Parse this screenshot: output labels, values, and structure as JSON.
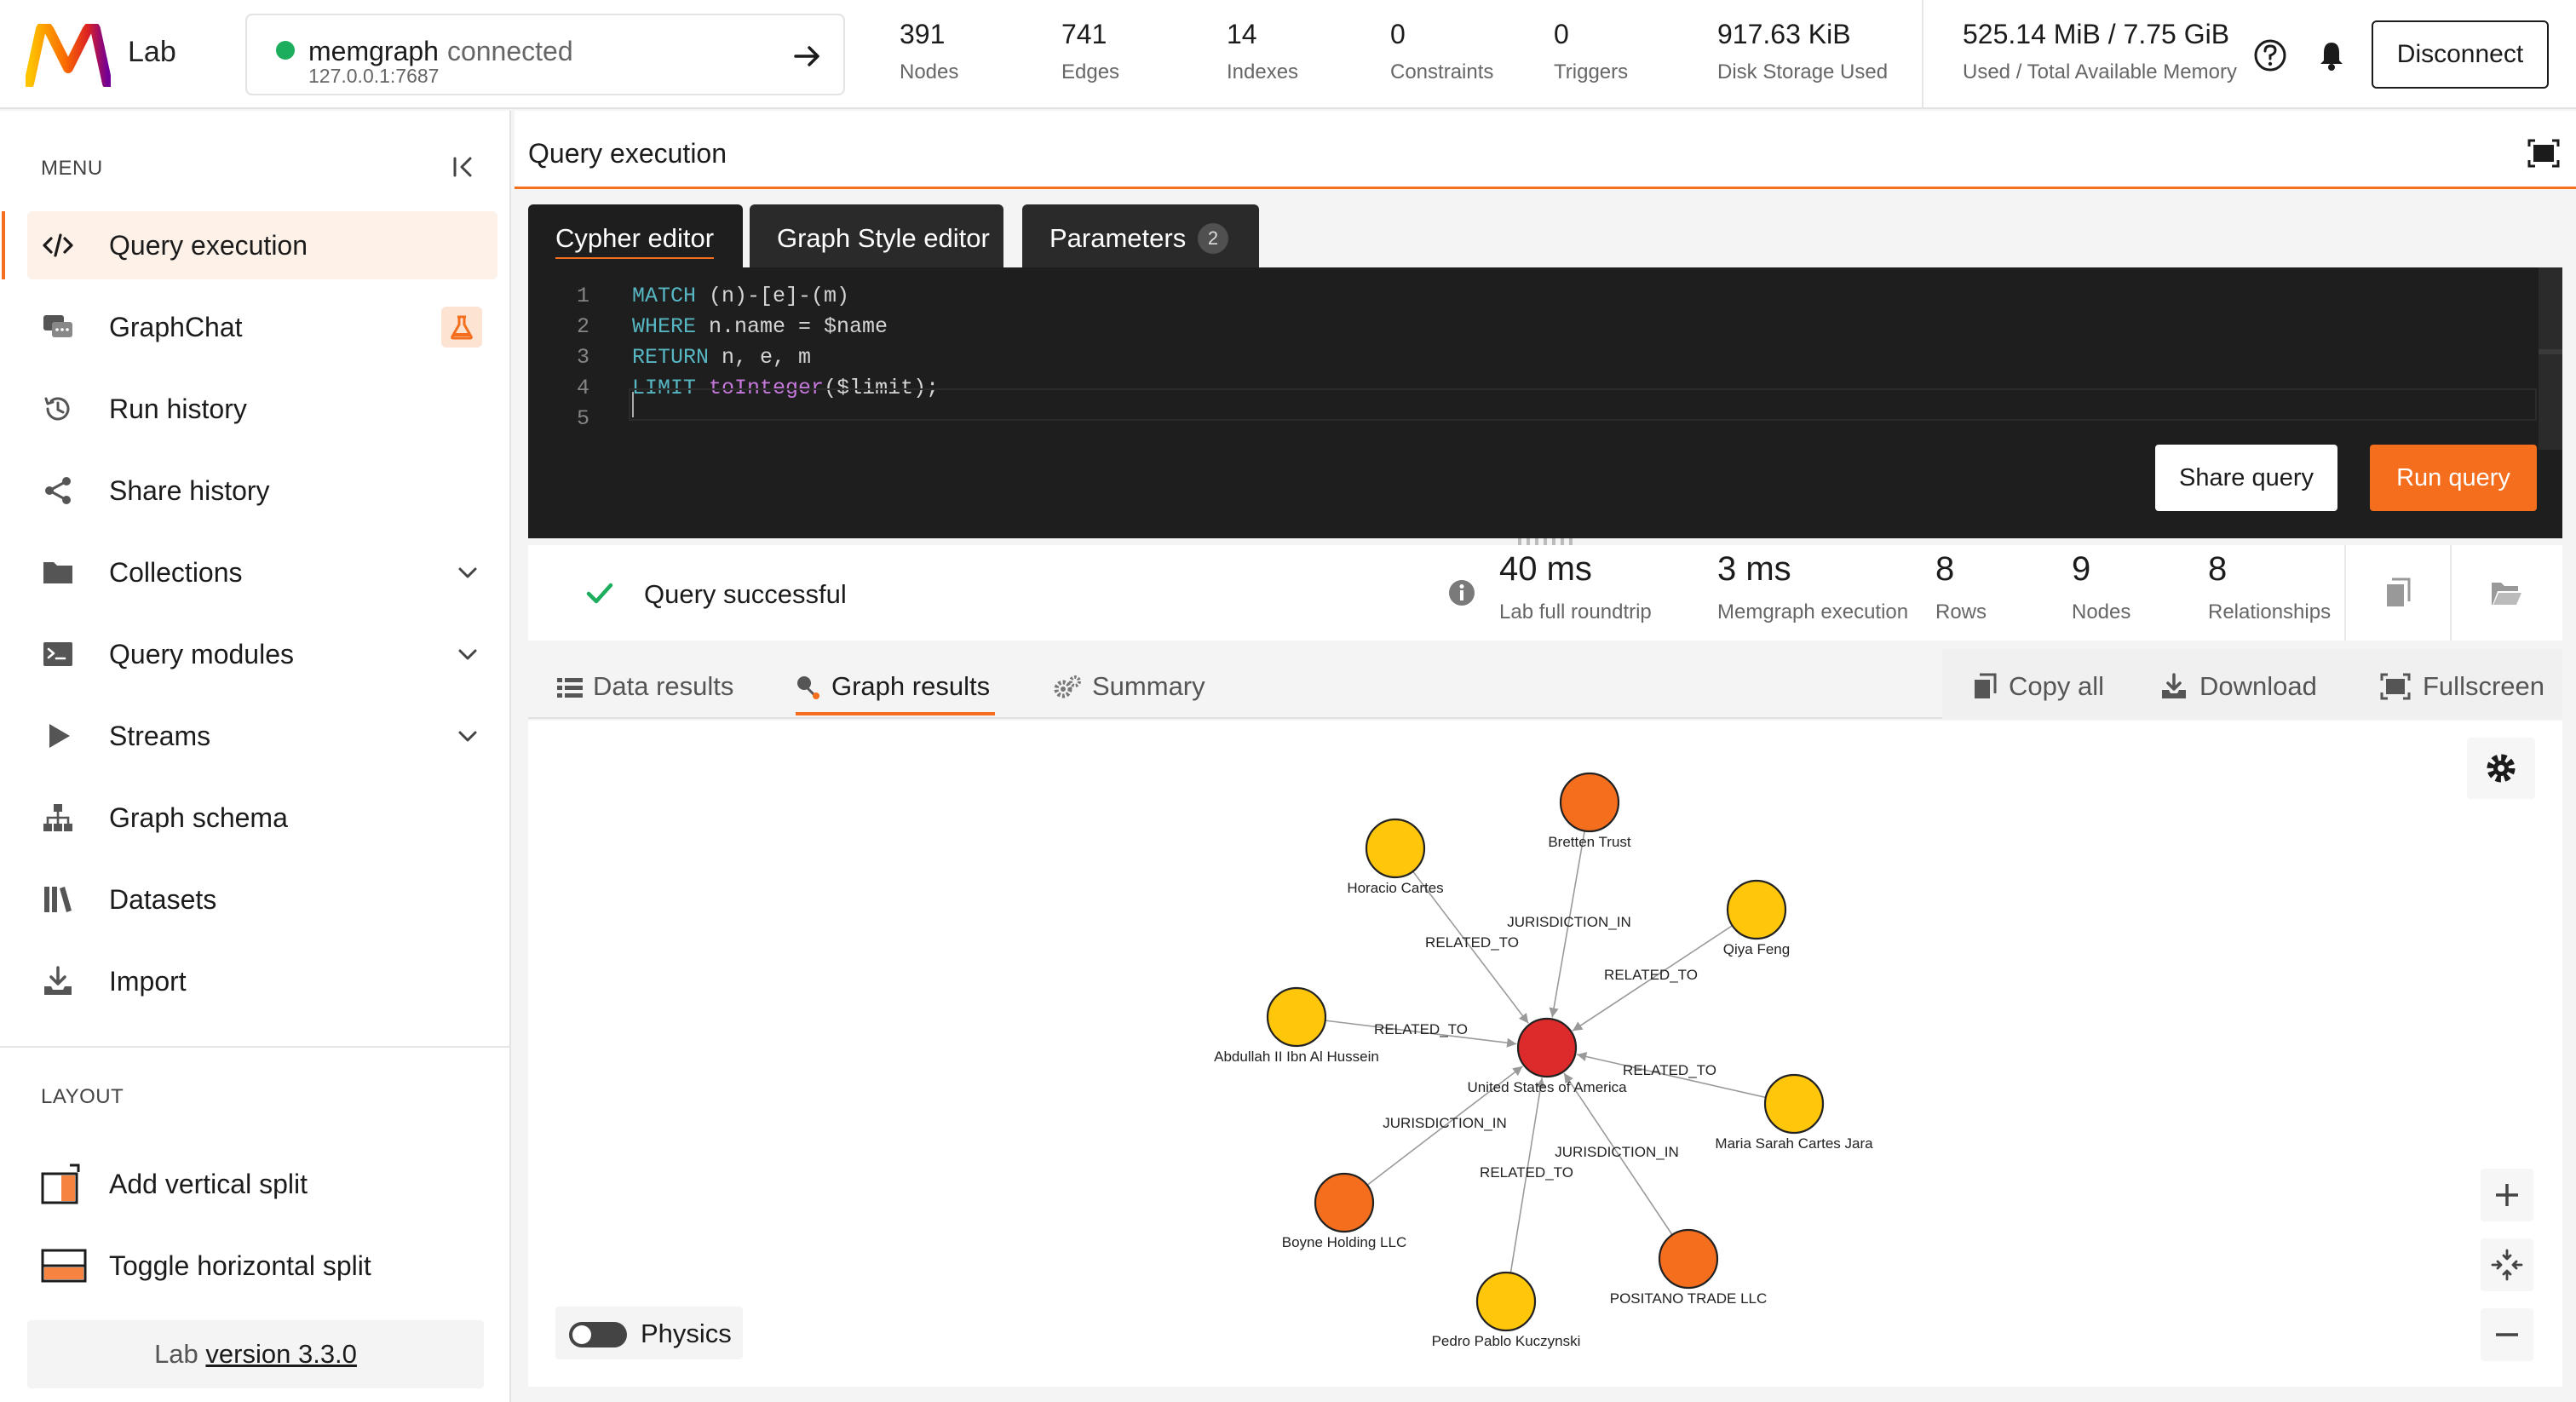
{
  "app": {
    "name": "Lab"
  },
  "connection": {
    "name": "memgraph",
    "status": "connected",
    "address": "127.0.0.1:7687"
  },
  "stats": [
    {
      "value": "391",
      "label": "Nodes"
    },
    {
      "value": "741",
      "label": "Edges"
    },
    {
      "value": "14",
      "label": "Indexes"
    },
    {
      "value": "0",
      "label": "Constraints"
    },
    {
      "value": "0",
      "label": "Triggers"
    },
    {
      "value": "917.63 KiB",
      "label": "Disk Storage Used"
    },
    {
      "value": "525.14 MiB / 7.75 GiB",
      "label": "Used / Total Available Memory"
    }
  ],
  "header": {
    "disconnect_label": "Disconnect"
  },
  "sidebar": {
    "menu_title": "MENU",
    "items": [
      {
        "label": "Query execution",
        "icon": "code-icon"
      },
      {
        "label": "GraphChat",
        "icon": "chat-icon"
      },
      {
        "label": "Run history",
        "icon": "history-icon"
      },
      {
        "label": "Share history",
        "icon": "share-icon"
      },
      {
        "label": "Collections",
        "icon": "folder-icon"
      },
      {
        "label": "Query modules",
        "icon": "terminal-icon"
      },
      {
        "label": "Streams",
        "icon": "play-icon"
      },
      {
        "label": "Graph schema",
        "icon": "schema-icon"
      },
      {
        "label": "Datasets",
        "icon": "library-icon"
      },
      {
        "label": "Import",
        "icon": "import-icon"
      }
    ],
    "layout_title": "LAYOUT",
    "layout_items": [
      {
        "label": "Add vertical split"
      },
      {
        "label": "Toggle horizontal split"
      }
    ],
    "version_prefix": "Lab",
    "version_link": "version 3.3.0"
  },
  "panel": {
    "title": "Query execution"
  },
  "editor_tabs": [
    {
      "label": "Cypher editor"
    },
    {
      "label": "Graph Style editor"
    },
    {
      "label": "Parameters",
      "badge": "2"
    }
  ],
  "editor": {
    "line_numbers": [
      "1",
      "2",
      "3",
      "4",
      "5"
    ],
    "lines": [
      [
        {
          "t": "MATCH",
          "k": "kw"
        },
        {
          "t": " (n)-[e]-(m)"
        }
      ],
      [
        {
          "t": "WHERE",
          "k": "kw"
        },
        {
          "t": " n.name = $name"
        }
      ],
      [
        {
          "t": "RETURN",
          "k": "kw"
        },
        {
          "t": " n, e, m"
        }
      ],
      [
        {
          "t": "LIMIT",
          "k": "kw"
        },
        {
          "t": " "
        },
        {
          "t": "toInteger",
          "k": "fn"
        },
        {
          "t": "($limit);"
        }
      ],
      []
    ],
    "share_label": "Share query",
    "run_label": "Run query"
  },
  "status": {
    "text": "Query successful",
    "metrics": [
      {
        "value": "40 ms",
        "label": "Lab full roundtrip"
      },
      {
        "value": "3 ms",
        "label": "Memgraph execution"
      },
      {
        "value": "8",
        "label": "Rows"
      },
      {
        "value": "9",
        "label": "Nodes"
      },
      {
        "value": "8",
        "label": "Relationships"
      }
    ]
  },
  "result_tabs": [
    {
      "label": "Data results",
      "icon": "table-icon"
    },
    {
      "label": "Graph results",
      "icon": "graph-icon"
    },
    {
      "label": "Summary",
      "icon": "gears-icon"
    }
  ],
  "result_actions": [
    {
      "label": "Copy all",
      "icon": "copy-icon"
    },
    {
      "label": "Download",
      "icon": "download-icon"
    },
    {
      "label": "Fullscreen",
      "icon": "fullscreen-icon"
    }
  ],
  "graph": {
    "physics_label": "Physics",
    "center": {
      "label": "United States of America",
      "color": "#dd2a2a"
    },
    "nodes": [
      {
        "label": "Bretten Trust",
        "color": "#f46e1e",
        "edge": "JURISDICTION_IN"
      },
      {
        "label": "Horacio Cartes",
        "color": "#ffc60a",
        "edge": "RELATED_TO"
      },
      {
        "label": "Qiya Feng",
        "color": "#ffc60a",
        "edge": "RELATED_TO"
      },
      {
        "label": "Abdullah II Ibn Al Hussein",
        "color": "#ffc60a",
        "edge": "RELATED_TO"
      },
      {
        "label": "Maria Sarah Cartes Jara",
        "color": "#ffc60a",
        "edge": "RELATED_TO"
      },
      {
        "label": "Boyne Holding LLC",
        "color": "#f46e1e",
        "edge": "JURISDICTION_IN"
      },
      {
        "label": "Pedro Pablo Kuczynski",
        "color": "#ffc60a",
        "edge": "RELATED_TO"
      },
      {
        "label": "POSITANO TRADE LLC",
        "color": "#f46e1e",
        "edge": "JURISDICTION_IN"
      }
    ]
  }
}
